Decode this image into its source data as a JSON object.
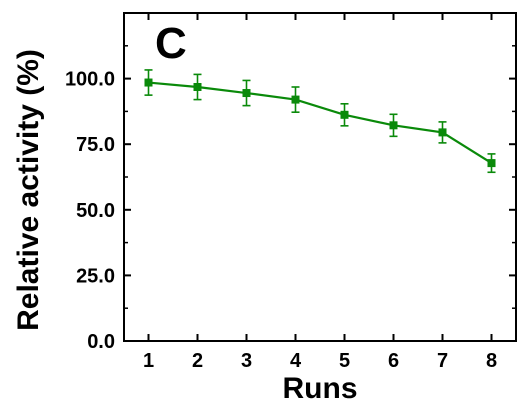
{
  "chart_data": {
    "type": "line",
    "panel_label": "C",
    "xlabel": "Runs",
    "ylabel": "Relative activity (%)",
    "x": [
      1,
      2,
      3,
      4,
      5,
      6,
      7,
      8
    ],
    "xticks": [
      "1",
      "2",
      "3",
      "4",
      "5",
      "6",
      "7",
      "8"
    ],
    "xlim": [
      0.5,
      8.5
    ],
    "ylim": [
      0,
      125
    ],
    "yticks": [
      0,
      25,
      50,
      75,
      100
    ],
    "ytick_labels": [
      "0.0",
      "25.0",
      "50.0",
      "75.0",
      "100.0"
    ],
    "grid": false,
    "series": [
      {
        "values": [
          98.5,
          96.8,
          94.5,
          92.0,
          86.2,
          82.2,
          79.5,
          67.8
        ],
        "errors": [
          4.8,
          4.8,
          4.8,
          4.8,
          4.2,
          4.2,
          4.0,
          3.5
        ],
        "color": "#0a8a0a",
        "marker": "square"
      }
    ]
  }
}
